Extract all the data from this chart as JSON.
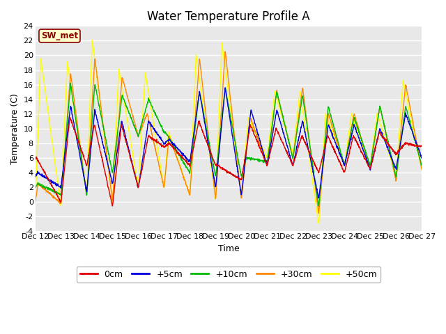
{
  "title": "Water Temperature Profile A",
  "xlabel": "Time",
  "ylabel": "Temperature (C)",
  "ylim": [
    -4,
    24
  ],
  "yticks": [
    -4,
    -2,
    0,
    2,
    4,
    6,
    8,
    10,
    12,
    14,
    16,
    18,
    20,
    22,
    24
  ],
  "series_labels": [
    "0cm",
    "+5cm",
    "+10cm",
    "+30cm",
    "+50cm"
  ],
  "series_colors": [
    "#dd0000",
    "#0000dd",
    "#00bb00",
    "#ff8800",
    "#ffff00"
  ],
  "annotation_text": "SW_met",
  "bg_color": "#ffffff",
  "plot_bg_color": "#e8e8e8",
  "grid_color": "#ffffff",
  "title_fontsize": 12,
  "label_fontsize": 9,
  "tick_fontsize": 8
}
